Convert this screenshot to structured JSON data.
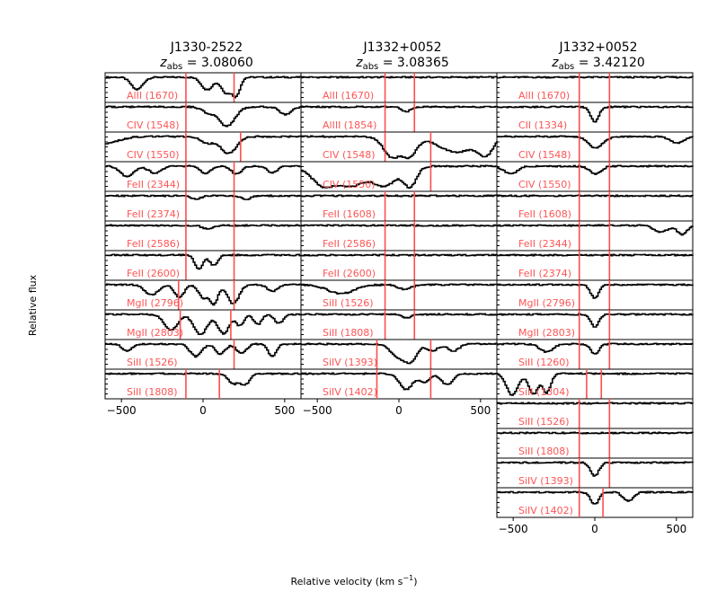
{
  "chart_data": {
    "type": "line",
    "xlabel": "Relative velocity (km s",
    "xlabel_sup": "−1",
    "xlabel_close": ")",
    "ylabel": "Relative flux",
    "xlim": [
      -600,
      600
    ],
    "xticks": [
      -500,
      0,
      500
    ],
    "columns": [
      {
        "name": "J1330-2522",
        "zabs": "3.08060",
        "panels": [
          {
            "label": "AlII (1670)",
            "vlines": [
              -105,
              190
            ],
            "features": [
              {
                "v": -410,
                "d": 0.55,
                "w": 35
              },
              {
                "v": 20,
                "d": 0.55,
                "w": 35
              },
              {
                "v": 140,
                "d": 0.7,
                "w": 35
              },
              {
                "v": 195,
                "d": 0.85,
                "w": 25
              }
            ]
          },
          {
            "label": "CIV (1548)",
            "vlines": [
              -105
            ],
            "features": [
              {
                "v": 30,
                "d": 0.25,
                "w": 40
              },
              {
                "v": 140,
                "d": 0.85,
                "w": 50
              },
              {
                "v": 500,
                "d": 0.35,
                "w": 35
              }
            ]
          },
          {
            "label": "CIV (1550)",
            "vlines": [
              -105,
              230
            ],
            "features": [
              {
                "v": -600,
                "d": 0.3,
                "w": 80
              },
              {
                "v": 20,
                "d": 0.3,
                "w": 40
              },
              {
                "v": 150,
                "d": 0.75,
                "w": 50
              }
            ]
          },
          {
            "label": "FeII (2344)",
            "vlines": [
              -105,
              190
            ],
            "features": [
              {
                "v": -470,
                "d": 0.45,
                "w": 40
              },
              {
                "v": -300,
                "d": 0.3,
                "w": 40
              },
              {
                "v": 10,
                "d": 0.35,
                "w": 30
              },
              {
                "v": 200,
                "d": 0.35,
                "w": 30
              },
              {
                "v": 420,
                "d": 0.3,
                "w": 30
              }
            ]
          },
          {
            "label": "FeII (2374)",
            "vlines": [
              -105,
              190
            ],
            "features": [
              {
                "v": -50,
                "d": 0.15,
                "w": 30
              },
              {
                "v": 260,
                "d": 0.15,
                "w": 30
              }
            ]
          },
          {
            "label": "FeII (2586)",
            "vlines": [
              -105,
              190
            ],
            "features": [
              {
                "v": 20,
                "d": 0.15,
                "w": 30
              }
            ]
          },
          {
            "label": "FeII (2600)",
            "vlines": [
              -105,
              190
            ],
            "features": [
              {
                "v": -30,
                "d": 0.6,
                "w": 25
              },
              {
                "v": 60,
                "d": 0.45,
                "w": 25
              }
            ]
          },
          {
            "label": "MgII (2796)",
            "vlines": [
              -150,
              190
            ],
            "features": [
              {
                "v": -320,
                "d": 0.45,
                "w": 40
              },
              {
                "v": -150,
                "d": 0.55,
                "w": 30
              },
              {
                "v": 0,
                "d": 0.6,
                "w": 30
              },
              {
                "v": 60,
                "d": 0.9,
                "w": 25
              },
              {
                "v": 180,
                "d": 0.85,
                "w": 35
              },
              {
                "v": 420,
                "d": 0.3,
                "w": 30
              }
            ]
          },
          {
            "label": "MgII (2803)",
            "vlines": [
              -140,
              170
            ],
            "features": [
              {
                "v": -200,
                "d": 0.7,
                "w": 40
              },
              {
                "v": -20,
                "d": 0.9,
                "w": 40
              },
              {
                "v": 120,
                "d": 0.85,
                "w": 35
              },
              {
                "v": 220,
                "d": 0.5,
                "w": 25
              },
              {
                "v": 330,
                "d": 0.45,
                "w": 25
              },
              {
                "v": 460,
                "d": 0.4,
                "w": 25
              }
            ]
          },
          {
            "label": "SiII (1526)",
            "vlines": [
              190
            ],
            "features": [
              {
                "v": -470,
                "d": 0.3,
                "w": 30
              },
              {
                "v": -50,
                "d": 0.55,
                "w": 35
              },
              {
                "v": 100,
                "d": 0.45,
                "w": 30
              },
              {
                "v": 230,
                "d": 0.4,
                "w": 30
              },
              {
                "v": 420,
                "d": 0.55,
                "w": 25
              }
            ]
          },
          {
            "label": "SiII (1808)",
            "vlines": [
              -105,
              100
            ],
            "features": [
              {
                "v": 180,
                "d": 0.45,
                "w": 30
              },
              {
                "v": 250,
                "d": 0.5,
                "w": 30
              }
            ]
          }
        ]
      },
      {
        "name": "J1332+0052",
        "zabs": "3.08365",
        "panels": [
          {
            "label": "AlII (1670)",
            "vlines": [
              -85,
              95
            ],
            "features": []
          },
          {
            "label": "AlIII (1854)",
            "vlines": [
              -85,
              95
            ],
            "features": [
              {
                "v": 40,
                "d": 0.2,
                "w": 30
              }
            ]
          },
          {
            "label": "CIV (1548)",
            "vlines": [
              -85,
              195
            ],
            "features": [
              {
                "v": -40,
                "d": 0.95,
                "w": 55
              },
              {
                "v": 50,
                "d": 0.95,
                "w": 50
              },
              {
                "v": 350,
                "d": 0.7,
                "w": 110
              },
              {
                "v": 520,
                "d": 0.9,
                "w": 45
              }
            ]
          },
          {
            "label": "CIV (1550)",
            "vlines": [
              195
            ],
            "features": [
              {
                "v": -450,
                "d": 0.95,
                "w": 80
              },
              {
                "v": -300,
                "d": 0.9,
                "w": 90
              },
              {
                "v": -100,
                "d": 0.9,
                "w": 80
              },
              {
                "v": 60,
                "d": 0.95,
                "w": 40
              }
            ]
          },
          {
            "label": "FeII (1608)",
            "vlines": [
              -85,
              95
            ],
            "features": []
          },
          {
            "label": "FeII (2586)",
            "vlines": [
              -85,
              95
            ],
            "features": []
          },
          {
            "label": "FeII (2600)",
            "vlines": [
              -85,
              95
            ],
            "features": []
          },
          {
            "label": "SiII (1526)",
            "vlines": [
              -85,
              95
            ],
            "features": [
              {
                "v": -360,
                "d": 0.4,
                "w": 80
              },
              {
                "v": 30,
                "d": 0.2,
                "w": 40
              }
            ]
          },
          {
            "label": "SiII (1808)",
            "vlines": [
              -85,
              95
            ],
            "features": [
              {
                "v": 40,
                "d": 0.15,
                "w": 30
              }
            ]
          },
          {
            "label": "SiIV (1393)",
            "vlines": [
              -135,
              195
            ],
            "features": [
              {
                "v": -10,
                "d": 0.55,
                "w": 45
              },
              {
                "v": 60,
                "d": 0.85,
                "w": 40
              },
              {
                "v": 200,
                "d": 0.3,
                "w": 35
              },
              {
                "v": 330,
                "d": 0.3,
                "w": 35
              }
            ]
          },
          {
            "label": "SiIV (1402)",
            "vlines": [
              -135,
              195
            ],
            "features": [
              {
                "v": 40,
                "d": 0.7,
                "w": 40
              },
              {
                "v": 150,
                "d": 0.4,
                "w": 30
              },
              {
                "v": 290,
                "d": 0.5,
                "w": 35
              }
            ]
          }
        ]
      },
      {
        "name": "J1332+0052",
        "zabs": "3.42120",
        "panels": [
          {
            "label": "AlII (1670)",
            "vlines": [
              -95,
              90
            ],
            "features": []
          },
          {
            "label": "CII (1334)",
            "vlines": [
              -95,
              90
            ],
            "features": [
              {
                "v": -5,
                "d": 0.65,
                "w": 25
              }
            ]
          },
          {
            "label": "CIV (1548)",
            "vlines": [
              -95,
              90
            ],
            "features": [
              {
                "v": 0,
                "d": 0.5,
                "w": 45
              },
              {
                "v": 500,
                "d": 0.3,
                "w": 40
              }
            ]
          },
          {
            "label": "CIV (1550)",
            "vlines": [
              -95,
              90
            ],
            "features": [
              {
                "v": -520,
                "d": 0.35,
                "w": 40
              },
              {
                "v": 0,
                "d": 0.35,
                "w": 35
              }
            ]
          },
          {
            "label": "FeII (1608)",
            "vlines": [
              -95,
              90
            ],
            "features": []
          },
          {
            "label": "FeII (2344)",
            "vlines": [
              -95,
              90
            ],
            "features": [
              {
                "v": 400,
                "d": 0.3,
                "w": 40
              },
              {
                "v": 530,
                "d": 0.4,
                "w": 30
              }
            ]
          },
          {
            "label": "FeII (2374)",
            "vlines": [
              -95,
              90
            ],
            "features": []
          },
          {
            "label": "MgII (2796)",
            "vlines": [
              -95,
              90
            ],
            "features": [
              {
                "v": -5,
                "d": 0.6,
                "w": 25
              }
            ]
          },
          {
            "label": "MgII (2803)",
            "vlines": [
              -95,
              90
            ],
            "features": [
              {
                "v": -5,
                "d": 0.55,
                "w": 25
              }
            ]
          },
          {
            "label": "SiII (1260)",
            "vlines": [
              -95,
              90
            ],
            "features": [
              {
                "v": -300,
                "d": 0.35,
                "w": 40
              },
              {
                "v": -5,
                "d": 0.45,
                "w": 25
              }
            ]
          },
          {
            "label": "SiII (1304)",
            "vlines": [
              -50,
              40
            ],
            "features": [
              {
                "v": -510,
                "d": 0.95,
                "w": 35
              },
              {
                "v": -380,
                "d": 0.9,
                "w": 30
              },
              {
                "v": -300,
                "d": 0.85,
                "w": 25
              }
            ]
          },
          {
            "label": "SiII (1526)",
            "vlines": [
              -95,
              90
            ],
            "features": []
          },
          {
            "label": "SiII (1808)",
            "vlines": [
              -95,
              90
            ],
            "features": []
          },
          {
            "label": "SiIV (1393)",
            "vlines": [
              -95,
              90
            ],
            "features": [
              {
                "v": -5,
                "d": 0.6,
                "w": 25
              }
            ]
          },
          {
            "label": "SiIV (1402)",
            "vlines": [
              -95,
              50
            ],
            "features": [
              {
                "v": -5,
                "d": 0.55,
                "w": 25
              },
              {
                "v": 200,
                "d": 0.4,
                "w": 30
              }
            ]
          }
        ]
      }
    ]
  }
}
